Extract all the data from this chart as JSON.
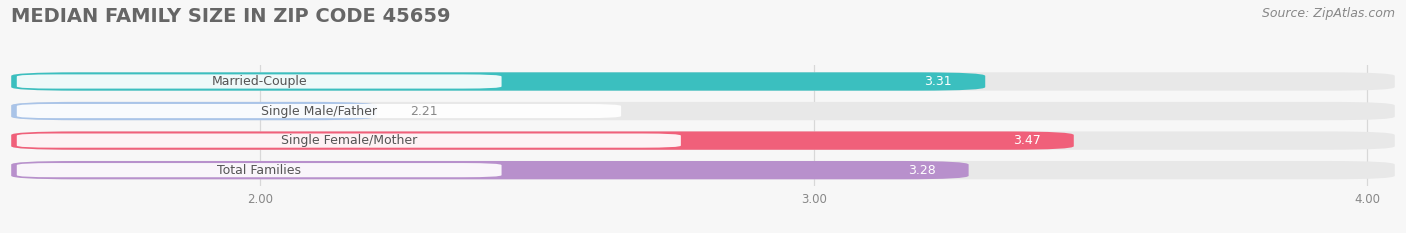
{
  "title": "MEDIAN FAMILY SIZE IN ZIP CODE 45659",
  "source": "Source: ZipAtlas.com",
  "categories": [
    "Married-Couple",
    "Single Male/Father",
    "Single Female/Mother",
    "Total Families"
  ],
  "values": [
    3.31,
    2.21,
    3.47,
    3.28
  ],
  "colors": [
    "#3bbfbf",
    "#aac4e8",
    "#f0607a",
    "#b890cc"
  ],
  "bar_bg_color": "#e8e8e8",
  "xlim_min": 1.55,
  "xlim_max": 4.05,
  "xdata_min": 2.0,
  "xdata_max": 4.0,
  "xticks": [
    2.0,
    3.0,
    4.0
  ],
  "xtick_labels": [
    "2.00",
    "3.00",
    "4.00"
  ],
  "bar_height": 0.62,
  "fig_bg_color": "#f7f7f7",
  "plot_bg_color": "#f7f7f7",
  "title_color": "#666666",
  "title_fontsize": 14,
  "cat_fontsize": 9,
  "value_fontsize": 9,
  "source_fontsize": 9,
  "source_color": "#888888",
  "label_text_color": "#555555",
  "value_text_color_inside": "#ffffff",
  "value_text_color_outside": "#888888",
  "label_box_color": "#ffffff",
  "grid_color": "#d8d8d8",
  "gap_color": "#f7f7f7"
}
